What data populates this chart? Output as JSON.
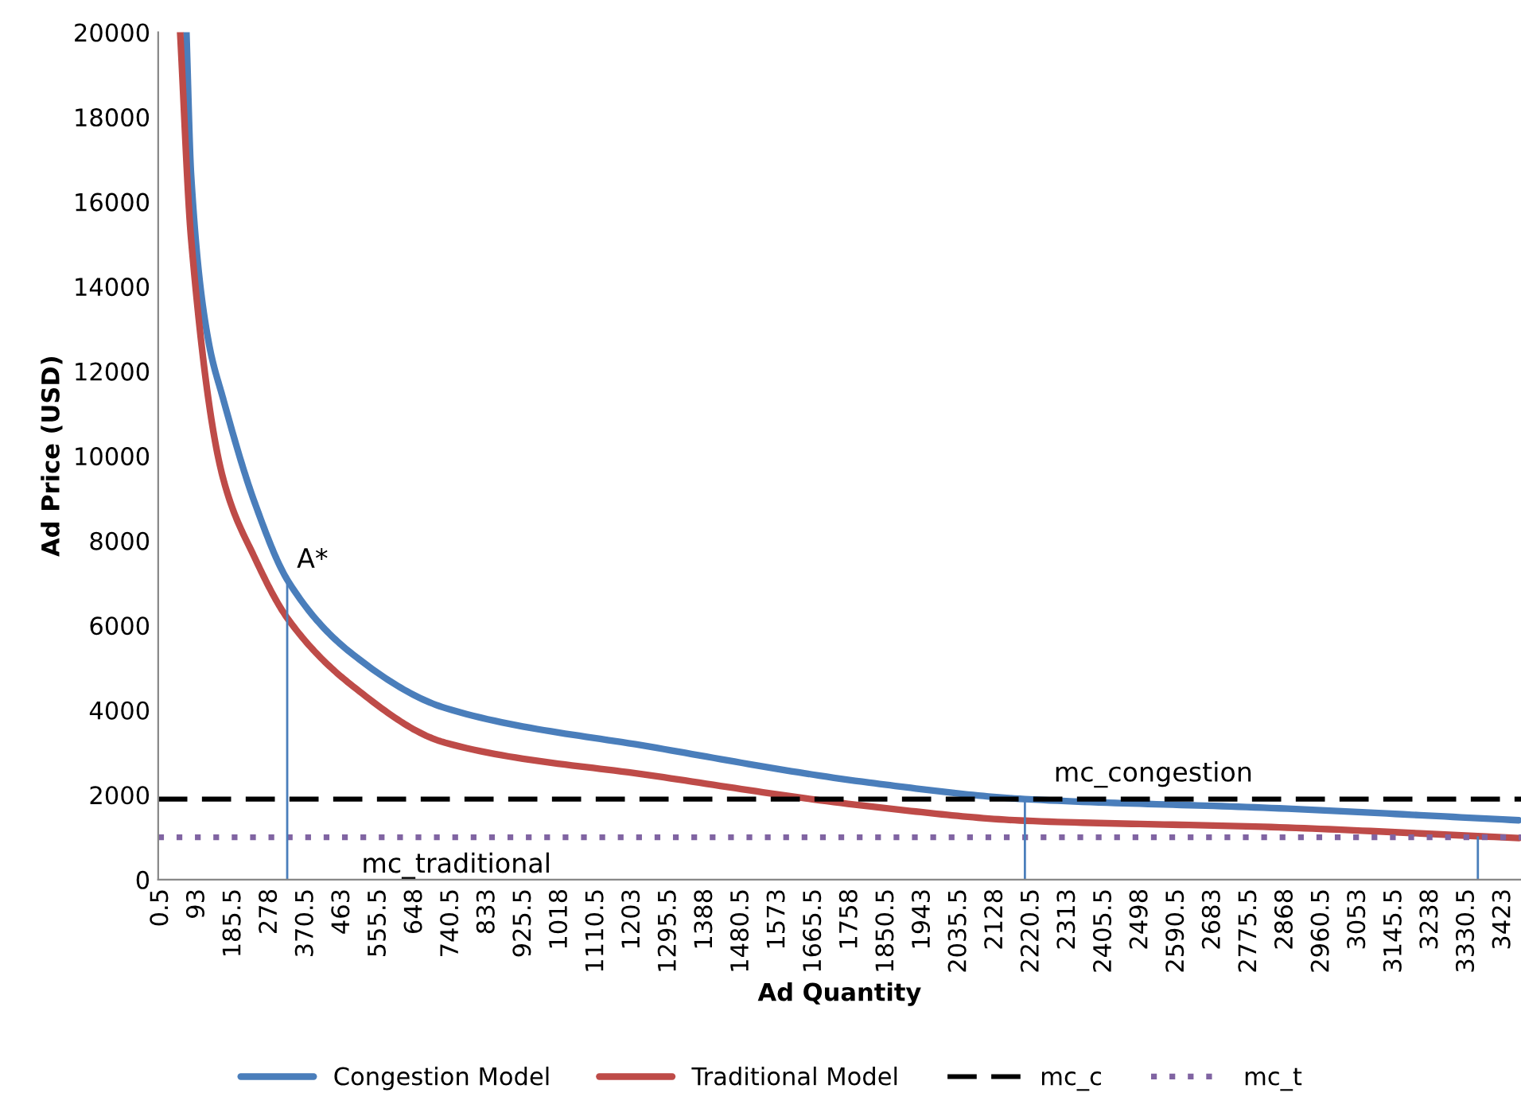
{
  "chart_data": {
    "type": "line",
    "xlabel": "Ad Quantity",
    "ylabel": "Ad Price (USD)",
    "xlim": [
      -7,
      3468
    ],
    "ylim": [
      0,
      20000
    ],
    "yticks": [
      0,
      2000,
      4000,
      6000,
      8000,
      10000,
      12000,
      14000,
      16000,
      18000,
      20000
    ],
    "xticks": [
      0.5,
      93,
      185.5,
      278,
      370.5,
      463,
      555.5,
      648,
      740.5,
      833,
      925.5,
      1018,
      1110.5,
      1203,
      1295.5,
      1388,
      1480.5,
      1573,
      1665.5,
      1758,
      1850.5,
      1943,
      2035.5,
      2128,
      2220.5,
      2313,
      2405.5,
      2498,
      2590.5,
      2683,
      2775.5,
      2868,
      2960.5,
      3053,
      3145.5,
      3238,
      3330.5,
      3423
    ],
    "grid": false,
    "legend": "bottom",
    "marker": "none",
    "series": [
      {
        "name": "Congestion Model",
        "color": "#4a7ebb",
        "line_style": "solid",
        "x": [
          65,
          77,
          121,
          158,
          239,
          324,
          482,
          725,
          1264,
          1806,
          2203,
          2831,
          3463
        ],
        "values": [
          20000,
          16620,
          12720,
          11370,
          8900,
          7050,
          5370,
          4050,
          3110,
          2290,
          1900,
          1690,
          1400
        ]
      },
      {
        "name": "Traditional Model",
        "color": "#be4b48",
        "line_style": "solid",
        "x": [
          49,
          77,
          158,
          239,
          324,
          482,
          725,
          1264,
          1806,
          2203,
          2831,
          3463
        ],
        "values": [
          20000,
          15120,
          9490,
          7600,
          6150,
          4620,
          3230,
          2440,
          1730,
          1390,
          1240,
          980
        ]
      },
      {
        "name": "mc_c",
        "color": "#000000",
        "line_style": "dashed",
        "x": [
          -7,
          3468
        ],
        "values": [
          1900,
          1900
        ]
      },
      {
        "name": "mc_t",
        "color": "#8064a2",
        "line_style": "dotted",
        "x": [
          -7,
          3468
        ],
        "values": [
          1000,
          1000
        ]
      },
      {
        "color": "#4a7ebb",
        "line_style": "solid",
        "x": [
          322,
          322
        ],
        "values": [
          0,
          7050
        ]
      },
      {
        "color": "#4a7ebb",
        "line_style": "solid",
        "x": [
          2203,
          2203
        ],
        "values": [
          0,
          1900
        ]
      },
      {
        "color": "#4a7ebb",
        "line_style": "solid",
        "x": [
          3358,
          3358
        ],
        "values": [
          0,
          1000
        ]
      }
    ],
    "annotations": [
      {
        "text": "A*",
        "x": 324,
        "y": 7050
      },
      {
        "text": "mc_congestion",
        "x": 2220.5,
        "y": 1900
      },
      {
        "text": "mc_traditional",
        "x": 370.5,
        "y": 1000
      }
    ]
  }
}
